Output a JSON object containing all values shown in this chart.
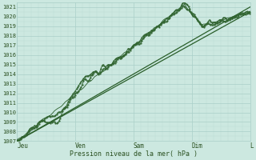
{
  "title": "",
  "xlabel": "Pression niveau de la mer( hPa )",
  "ylabel": "",
  "ylim": [
    1007,
    1021.5
  ],
  "xlim": [
    0,
    96
  ],
  "yticks": [
    1007,
    1008,
    1009,
    1010,
    1011,
    1012,
    1013,
    1014,
    1015,
    1016,
    1017,
    1018,
    1019,
    1020,
    1021
  ],
  "xtick_positions": [
    0,
    24,
    48,
    72,
    96
  ],
  "xtick_labels": [
    "Jeu",
    "Ven",
    "Sam",
    "Dim",
    "L"
  ],
  "bg_color": "#cce8e0",
  "grid_major_color": "#aacfc8",
  "grid_minor_color": "#bbddd6",
  "line_dark": "#2a5e2a",
  "line_mid": "#336633",
  "font_color": "#2a5020"
}
